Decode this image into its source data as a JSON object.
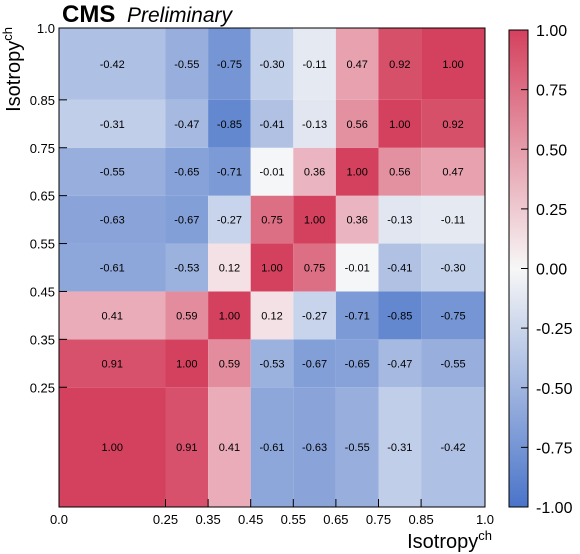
{
  "header": {
    "experiment": "CMS",
    "status": "Preliminary"
  },
  "chart_data": {
    "type": "heatmap",
    "title": "",
    "xlabel": "Isotropy",
    "xlabel_sup": "ch",
    "ylabel": "Isotropy",
    "ylabel_sup": "ch",
    "bin_edges": [
      0.0,
      0.25,
      0.35,
      0.45,
      0.55,
      0.65,
      0.75,
      0.85,
      1.0
    ],
    "x_tick_labels": [
      "0.0",
      "0.25",
      "0.35",
      "0.45",
      "0.55",
      "0.65",
      "0.75",
      "0.85",
      "1.0"
    ],
    "y_tick_labels": [
      "0.25",
      "0.35",
      "0.45",
      "0.55",
      "0.65",
      "0.75",
      "0.85",
      "1.0"
    ],
    "values": [
      [
        1.0,
        0.91,
        0.41,
        -0.61,
        -0.63,
        -0.55,
        -0.31,
        -0.42
      ],
      [
        0.91,
        1.0,
        0.59,
        -0.53,
        -0.67,
        -0.65,
        -0.47,
        -0.55
      ],
      [
        0.41,
        0.59,
        1.0,
        0.12,
        -0.27,
        -0.71,
        -0.85,
        -0.75
      ],
      [
        -0.61,
        -0.53,
        0.12,
        1.0,
        0.75,
        -0.01,
        -0.41,
        -0.3
      ],
      [
        -0.63,
        -0.67,
        -0.27,
        0.75,
        1.0,
        0.36,
        -0.13,
        -0.11
      ],
      [
        -0.55,
        -0.65,
        -0.71,
        -0.01,
        0.36,
        1.0,
        0.56,
        0.47
      ],
      [
        -0.31,
        -0.47,
        -0.85,
        -0.41,
        -0.13,
        0.56,
        1.0,
        0.92
      ],
      [
        -0.42,
        -0.55,
        -0.75,
        -0.3,
        -0.11,
        0.47,
        0.92,
        1.0
      ]
    ],
    "zlim": [
      -1.0,
      1.0
    ],
    "colorbar_tick_labels": [
      "1.00",
      "0.75",
      "0.50",
      "0.25",
      "0.00",
      "-0.25",
      "-0.50",
      "-0.75",
      "-1.00"
    ],
    "colorbar_ticks": [
      1.0,
      0.75,
      0.5,
      0.25,
      0.0,
      -0.25,
      -0.5,
      -0.75,
      -1.0
    ],
    "colors": {
      "negative": "#4a74c9",
      "zero": "#f7f7f7",
      "positive": "#d4415e"
    },
    "grid": false,
    "legend": "colorbar-right"
  }
}
